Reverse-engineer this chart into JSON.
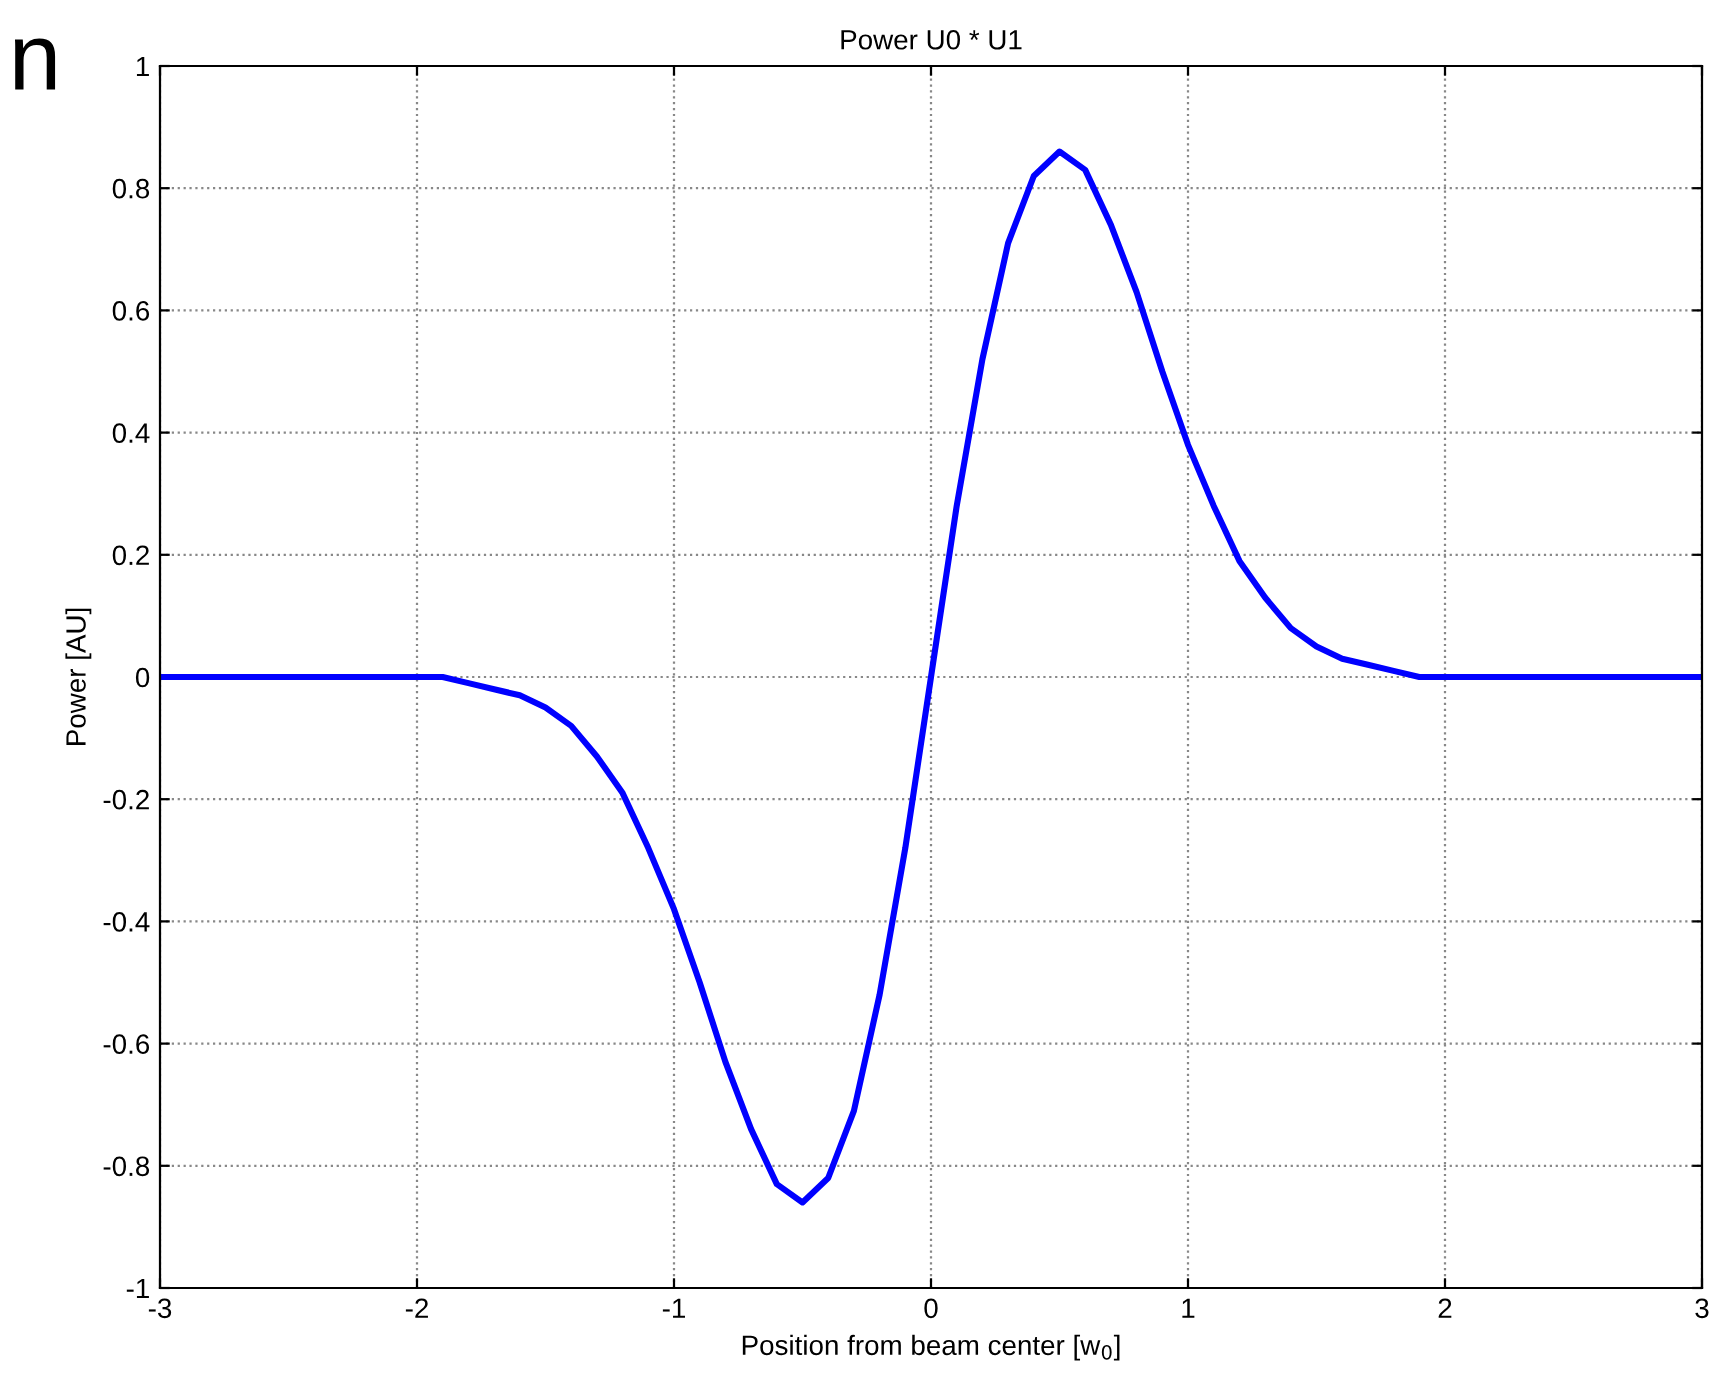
{
  "chart_data": {
    "type": "line",
    "title": "Power U0 * U1",
    "xlabel": "Position from beam center [w$_{0}$]",
    "ylabel": "Power [AU]",
    "annotations": [
      "n"
    ],
    "x": [
      -3,
      -2.5,
      -2.2,
      -2,
      -1.9,
      -1.8,
      -1.7,
      -1.6,
      -1.5,
      -1.4,
      -1.3,
      -1.2,
      -1.1,
      -1,
      -0.9,
      -0.8,
      -0.7,
      -0.6,
      -0.5,
      -0.4,
      -0.3,
      -0.2,
      -0.1,
      0,
      0.1,
      0.2,
      0.3,
      0.4,
      0.5,
      0.6,
      0.7,
      0.8,
      0.9,
      1,
      1.1,
      1.2,
      1.3,
      1.4,
      1.5,
      1.6,
      1.7,
      1.8,
      1.9,
      2,
      2.2,
      2.5,
      3
    ],
    "series": [
      {
        "color": "#0000ff",
        "values": [
          0,
          0,
          0,
          0,
          0,
          -0.01,
          -0.02,
          -0.03,
          -0.05,
          -0.08,
          -0.13,
          -0.19,
          -0.28,
          -0.38,
          -0.5,
          -0.63,
          -0.74,
          -0.83,
          -0.86,
          -0.82,
          -0.71,
          -0.52,
          -0.28,
          0,
          0.28,
          0.52,
          0.71,
          0.82,
          0.86,
          0.83,
          0.74,
          0.63,
          0.5,
          0.38,
          0.28,
          0.19,
          0.13,
          0.08,
          0.05,
          0.03,
          0.02,
          0.01,
          0,
          0,
          0,
          0,
          0
        ]
      }
    ],
    "xlim": [
      -3,
      3
    ],
    "xticks": [
      -3,
      -2,
      -1,
      0,
      1,
      2,
      3
    ],
    "ylim": [
      -1,
      1
    ],
    "yticks": [
      -1,
      -0.8,
      -0.6,
      -0.4,
      -0.2,
      0,
      0.2,
      0.4,
      0.6,
      0.8,
      1
    ],
    "grid": true,
    "line_style": "solid"
  }
}
